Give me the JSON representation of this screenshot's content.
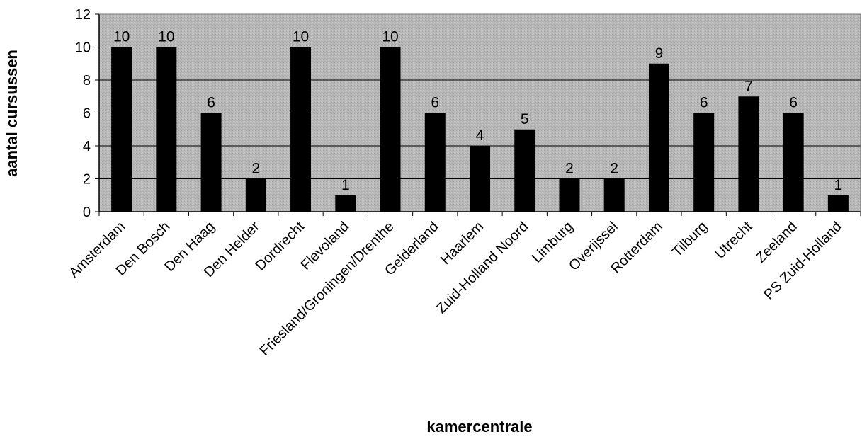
{
  "chart_data": {
    "type": "bar",
    "title": "",
    "xlabel": "kamercentrale",
    "ylabel": "aantal cursussen",
    "ylim": [
      0,
      12
    ],
    "yticks": [
      0,
      2,
      4,
      6,
      8,
      10,
      12
    ],
    "grid": true,
    "legend": "none",
    "colors": {
      "bar": "#000000",
      "plot_background": "#b3b3b3",
      "gridline": "#000000"
    },
    "categories": [
      "Amsterdam",
      "Den Bosch",
      "Den Haag",
      "Den Helder",
      "Dordrecht",
      "Flevoland",
      "Friesland/Groningen/Drenthe",
      "Gelderland",
      "Haarlem",
      "Zuid-Holland Noord",
      "Limburg",
      "Overijssel",
      "Rotterdam",
      "Tilburg",
      "Utrecht",
      "Zeeland",
      "PS Zuid-Holland"
    ],
    "values": [
      10,
      10,
      6,
      2,
      10,
      1,
      10,
      6,
      4,
      5,
      2,
      2,
      9,
      6,
      7,
      6,
      1
    ],
    "data_labels": [
      "10",
      "10",
      "6",
      "2",
      "10",
      "1",
      "10",
      "6",
      "4",
      "5",
      "2",
      "2",
      "9",
      "6",
      "7",
      "6",
      "1"
    ]
  }
}
